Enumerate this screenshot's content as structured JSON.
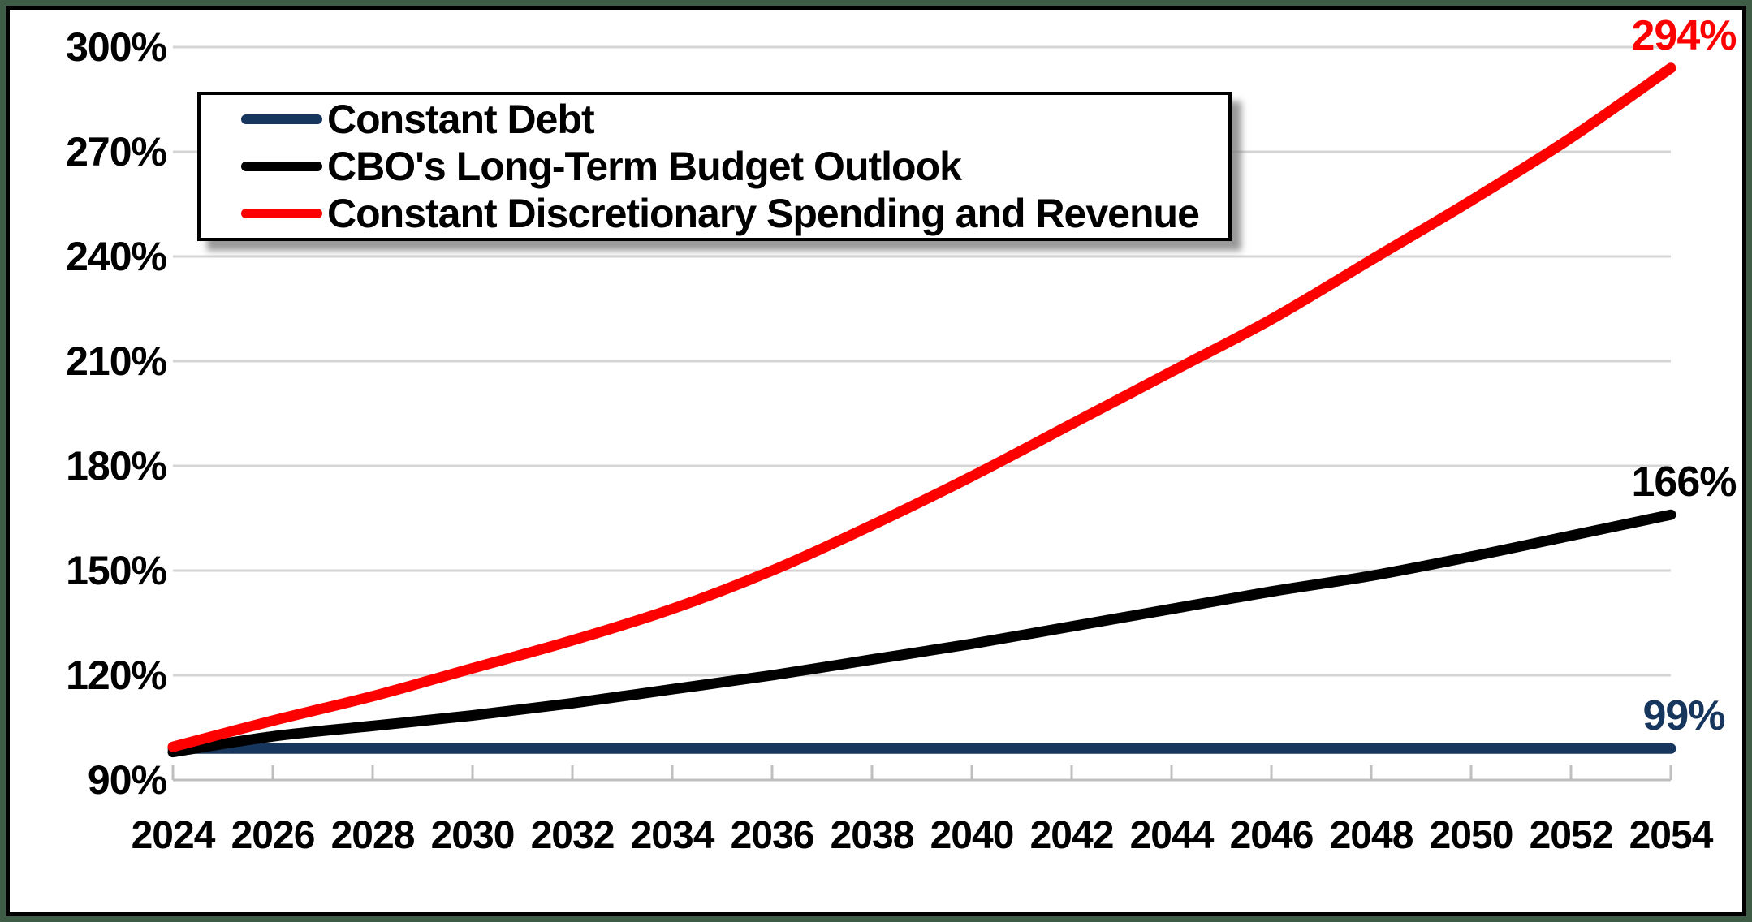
{
  "chart_data": {
    "type": "line",
    "title": "",
    "x": [
      2024,
      2026,
      2028,
      2030,
      2032,
      2034,
      2036,
      2038,
      2040,
      2042,
      2044,
      2046,
      2048,
      2050,
      2052,
      2054
    ],
    "series": [
      {
        "name": "Constant Debt",
        "color": "#17365D",
        "end_label": "99%",
        "values": [
          99,
          99,
          99,
          99,
          99,
          99,
          99,
          99,
          99,
          99,
          99,
          99,
          99,
          99,
          99,
          99
        ]
      },
      {
        "name": "CBO's Long-Term Budget Outlook",
        "color": "#000000",
        "end_label": "166%",
        "values": [
          98,
          102.5,
          105.5,
          108.5,
          112,
          116,
          120,
          124.5,
          129,
          134,
          139,
          144,
          148.5,
          154,
          160,
          166
        ]
      },
      {
        "name": "Constant Discretionary Spending and Revenue",
        "color": "#FE0000",
        "end_label": "294%",
        "values": [
          99.5,
          107,
          114,
          122,
          130,
          139,
          150,
          163,
          177,
          192,
          207,
          222,
          239,
          256,
          274,
          294
        ]
      }
    ],
    "y_axis": {
      "min": 90,
      "max": 300,
      "step": 30,
      "tick_labels": [
        "300%",
        "270%",
        "240%",
        "210%",
        "180%",
        "150%",
        "120%",
        "90%"
      ]
    },
    "x_axis": {
      "tick_labels": [
        "2024",
        "2026",
        "2028",
        "2030",
        "2032",
        "2034",
        "2036",
        "2038",
        "2040",
        "2042",
        "2044",
        "2046",
        "2048",
        "2050",
        "2052",
        "2054"
      ]
    },
    "legend_position": "top-left",
    "grid": "horizontal",
    "colors": {
      "frame_border": "#3E5C46",
      "gridline": "#D5D5D5",
      "axis": "#BFBFBF"
    }
  },
  "legend": {
    "items": [
      {
        "label": "Constant Debt",
        "color": "#17365D"
      },
      {
        "label": "CBO's Long-Term Budget Outlook",
        "color": "#000000"
      },
      {
        "label": "Constant Discretionary Spending and Revenue",
        "color": "#FE0000"
      }
    ]
  }
}
